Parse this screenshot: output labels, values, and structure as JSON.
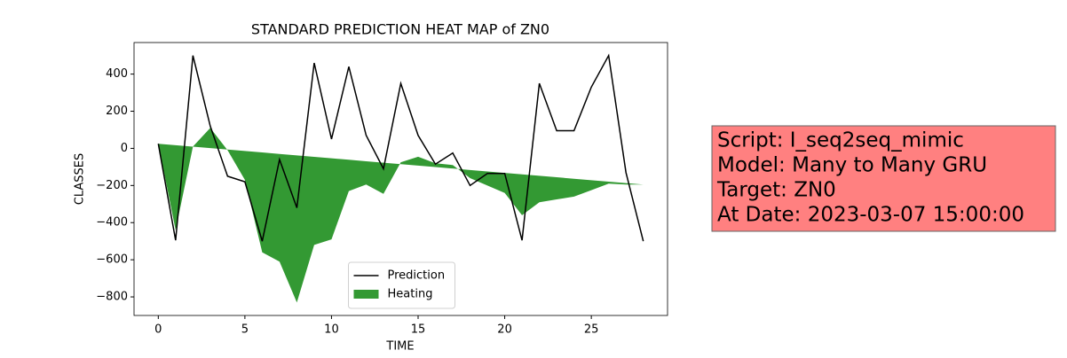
{
  "chart_data": {
    "type": "line",
    "title": "STANDARD PREDICTION HEAT MAP of ZN0",
    "x_label": "TIME",
    "y_label": "CLASSES",
    "x": [
      0,
      1,
      2,
      3,
      4,
      5,
      6,
      7,
      8,
      9,
      10,
      11,
      12,
      13,
      14,
      15,
      16,
      17,
      18,
      19,
      20,
      21,
      22,
      23,
      24,
      25,
      26,
      27,
      28
    ],
    "series": [
      {
        "name": "Prediction",
        "color": "#000000",
        "kind": "line",
        "values": [
          25,
          -495,
          500,
          120,
          -150,
          -180,
          -500,
          -60,
          -320,
          460,
          50,
          440,
          70,
          -110,
          350,
          70,
          -85,
          -25,
          -200,
          -135,
          -135,
          -495,
          350,
          95,
          95,
          330,
          500,
          -130,
          -500
        ]
      },
      {
        "name": "Heating",
        "color": "#339933",
        "kind": "fill_between",
        "values": [
          25,
          -440,
          10,
          110,
          -10,
          -170,
          -560,
          -610,
          -830,
          -520,
          -490,
          -230,
          -195,
          -245,
          -75,
          -45,
          -80,
          -90,
          -160,
          -200,
          -240,
          -360,
          -290,
          -275,
          -260,
          -225,
          -190,
          -195,
          -195
        ],
        "baseline": [
          25,
          17.1,
          9.3,
          1.4,
          -6.4,
          -14.3,
          -22.1,
          -30,
          -37.9,
          -45.7,
          -53.6,
          -61.4,
          -69.3,
          -77.1,
          -85,
          -92.9,
          -100.7,
          -108.6,
          -116.4,
          -124.3,
          -132.1,
          -140,
          -147.9,
          -155.7,
          -163.6,
          -171.4,
          -179.3,
          -187.1,
          -195
        ]
      }
    ],
    "xlim": [
      -1.4,
      29.4
    ],
    "ylim": [
      -900,
      570
    ],
    "xticks": [
      0,
      5,
      10,
      15,
      20,
      25
    ],
    "yticks": [
      {
        "value": -800,
        "label": "−800"
      },
      {
        "value": -600,
        "label": "−600"
      },
      {
        "value": -400,
        "label": "−400"
      },
      {
        "value": -200,
        "label": "−200"
      },
      0,
      200,
      400
    ],
    "legend": "lower center"
  },
  "annotation_box": {
    "color": "#ff8080",
    "lines": [
      "Script: I_seq2seq_mimic",
      "Model: Many to Many GRU",
      "Target: ZN0",
      "At Date: 2023-03-07 15:00:00"
    ]
  }
}
